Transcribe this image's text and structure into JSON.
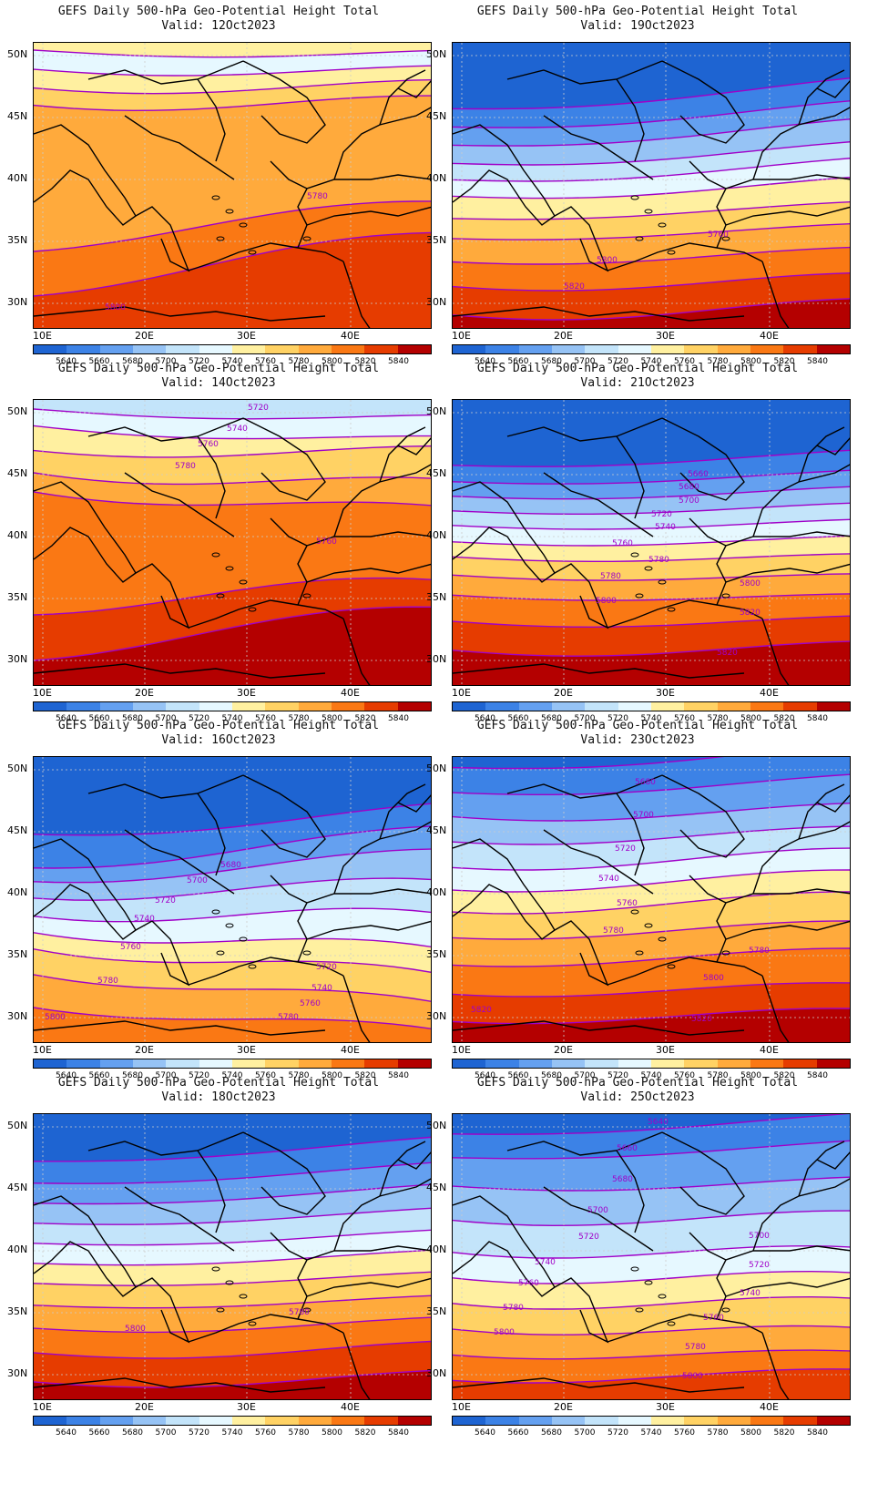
{
  "colorbar": {
    "labels": [
      "5640",
      "5660",
      "5680",
      "5700",
      "5720",
      "5740",
      "5760",
      "5780",
      "5800",
      "5820",
      "5840"
    ],
    "colors": [
      "#1e64d2",
      "#3c82e6",
      "#64a0f0",
      "#96c3f5",
      "#c3e4fa",
      "#e6f8ff",
      "#fff0a0",
      "#ffd264",
      "#ffaa3c",
      "#fa7814",
      "#e63c00",
      "#b40000"
    ]
  },
  "axes": {
    "lat_ticks": [
      "50N",
      "45N",
      "40N",
      "35N",
      "30N"
    ],
    "lon_ticks": [
      "10E",
      "20E",
      "30E",
      "40E"
    ]
  },
  "contour_color": "#a000c8",
  "panels": [
    {
      "id": "p12",
      "title": "GEFS Daily 500-hPa Geo-Potential Height Total",
      "valid": "Valid: 12Oct2023",
      "labels": [
        "5780",
        "5800"
      ]
    },
    {
      "id": "p19",
      "title": "GEFS Daily 500-hPa Geo-Potential Height Total",
      "valid": "Valid: 19Oct2023",
      "labels": [
        "5760",
        "5800",
        "5820"
      ]
    },
    {
      "id": "p14",
      "title": "GEFS Daily 500-hPa Geo-Potential Height Total",
      "valid": "Valid: 14Oct2023",
      "labels": [
        "5720",
        "5740",
        "5760",
        "5780",
        "5760"
      ]
    },
    {
      "id": "p21",
      "title": "GEFS Daily 500-hPa Geo-Potential Height Total",
      "valid": "Valid: 21Oct2023",
      "labels": [
        "5660",
        "5680",
        "5700",
        "5720",
        "5740",
        "5760",
        "5780",
        "5780",
        "5800",
        "5800",
        "5820",
        "5820"
      ]
    },
    {
      "id": "p16",
      "title": "GEFS Daily 500-hPa Geo-Potential Height Total",
      "valid": "Valid: 16Oct2023",
      "labels": [
        "5680",
        "5700",
        "5720",
        "5740",
        "5760",
        "5780",
        "5720",
        "5740",
        "5760",
        "5780",
        "5800"
      ]
    },
    {
      "id": "p23",
      "title": "GEFS Daily 500-hPa Geo-Potential Height Total",
      "valid": "Valid: 23Oct2023",
      "labels": [
        "5680",
        "5700",
        "5720",
        "5740",
        "5760",
        "5780",
        "5780",
        "5800",
        "5820",
        "5820"
      ]
    },
    {
      "id": "p18",
      "title": "GEFS Daily 500-hPa Geo-Potential Height Total",
      "valid": "Valid: 18Oct2023",
      "labels": [
        "5780",
        "5800"
      ]
    },
    {
      "id": "p25",
      "title": "GEFS Daily 500-hPa Geo-Potential Height Total",
      "valid": "Valid: 25Oct2023",
      "labels": [
        "5640",
        "5660",
        "5680",
        "5700",
        "5700",
        "5720",
        "5720",
        "5740",
        "5740",
        "5760",
        "5760",
        "5780",
        "5780",
        "5800",
        "5800"
      ]
    }
  ]
}
